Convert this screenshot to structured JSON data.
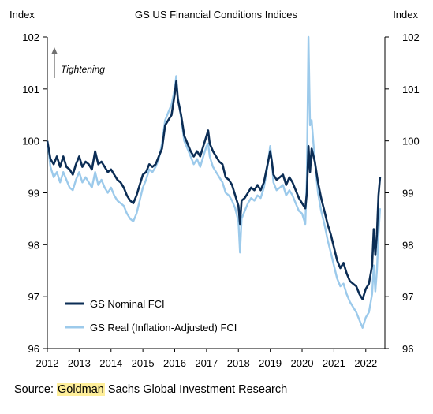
{
  "chart_data": {
    "type": "line",
    "title": "GS US Financial Conditions Indices",
    "ylabel_left": "Index",
    "ylabel_right": "Index",
    "ylim": [
      96,
      102
    ],
    "yticks": [
      "96",
      "97",
      "98",
      "99",
      "100",
      "101",
      "102"
    ],
    "xlim": [
      2012,
      2022.6
    ],
    "xticks": [
      "2012",
      "2013",
      "2014",
      "2015",
      "2016",
      "2017",
      "2018",
      "2019",
      "2020",
      "2021",
      "2022"
    ],
    "annotation": "Tightening",
    "legend_position": "bottom-left",
    "grid": false,
    "series": [
      {
        "name": "GS Nominal FCI",
        "color": "#0b2d55",
        "points": [
          [
            2012.0,
            100.0
          ],
          [
            2012.1,
            99.65
          ],
          [
            2012.2,
            99.55
          ],
          [
            2012.3,
            99.7
          ],
          [
            2012.4,
            99.5
          ],
          [
            2012.5,
            99.7
          ],
          [
            2012.6,
            99.5
          ],
          [
            2012.7,
            99.45
          ],
          [
            2012.8,
            99.35
          ],
          [
            2012.9,
            99.55
          ],
          [
            2013.0,
            99.7
          ],
          [
            2013.1,
            99.5
          ],
          [
            2013.2,
            99.6
          ],
          [
            2013.3,
            99.55
          ],
          [
            2013.4,
            99.45
          ],
          [
            2013.5,
            99.8
          ],
          [
            2013.6,
            99.55
          ],
          [
            2013.7,
            99.6
          ],
          [
            2013.8,
            99.5
          ],
          [
            2013.9,
            99.4
          ],
          [
            2014.0,
            99.45
          ],
          [
            2014.1,
            99.35
          ],
          [
            2014.2,
            99.25
          ],
          [
            2014.3,
            99.2
          ],
          [
            2014.4,
            99.1
          ],
          [
            2014.5,
            98.95
          ],
          [
            2014.6,
            98.85
          ],
          [
            2014.7,
            98.8
          ],
          [
            2014.8,
            98.95
          ],
          [
            2014.9,
            99.15
          ],
          [
            2015.0,
            99.35
          ],
          [
            2015.1,
            99.4
          ],
          [
            2015.2,
            99.55
          ],
          [
            2015.3,
            99.5
          ],
          [
            2015.4,
            99.55
          ],
          [
            2015.5,
            99.7
          ],
          [
            2015.6,
            99.85
          ],
          [
            2015.7,
            100.3
          ],
          [
            2015.8,
            100.4
          ],
          [
            2015.9,
            100.5
          ],
          [
            2016.0,
            100.9
          ],
          [
            2016.05,
            101.15
          ],
          [
            2016.1,
            100.8
          ],
          [
            2016.2,
            100.5
          ],
          [
            2016.3,
            100.1
          ],
          [
            2016.4,
            99.95
          ],
          [
            2016.5,
            99.8
          ],
          [
            2016.6,
            99.7
          ],
          [
            2016.7,
            99.8
          ],
          [
            2016.8,
            99.7
          ],
          [
            2016.9,
            99.9
          ],
          [
            2017.0,
            100.1
          ],
          [
            2017.05,
            100.2
          ],
          [
            2017.1,
            99.95
          ],
          [
            2017.2,
            99.8
          ],
          [
            2017.3,
            99.7
          ],
          [
            2017.4,
            99.6
          ],
          [
            2017.5,
            99.55
          ],
          [
            2017.6,
            99.3
          ],
          [
            2017.7,
            99.25
          ],
          [
            2017.8,
            99.15
          ],
          [
            2017.9,
            98.95
          ],
          [
            2018.0,
            98.75
          ],
          [
            2018.05,
            98.4
          ],
          [
            2018.1,
            98.85
          ],
          [
            2018.2,
            98.9
          ],
          [
            2018.3,
            99.0
          ],
          [
            2018.4,
            99.1
          ],
          [
            2018.5,
            99.05
          ],
          [
            2018.6,
            99.15
          ],
          [
            2018.7,
            99.05
          ],
          [
            2018.8,
            99.2
          ],
          [
            2018.9,
            99.5
          ],
          [
            2019.0,
            99.8
          ],
          [
            2019.05,
            99.6
          ],
          [
            2019.1,
            99.35
          ],
          [
            2019.2,
            99.25
          ],
          [
            2019.3,
            99.3
          ],
          [
            2019.4,
            99.35
          ],
          [
            2019.5,
            99.15
          ],
          [
            2019.6,
            99.3
          ],
          [
            2019.7,
            99.2
          ],
          [
            2019.8,
            99.05
          ],
          [
            2019.9,
            98.9
          ],
          [
            2020.0,
            98.8
          ],
          [
            2020.1,
            98.7
          ],
          [
            2020.15,
            99.0
          ],
          [
            2020.2,
            99.9
          ],
          [
            2020.25,
            99.4
          ],
          [
            2020.3,
            99.85
          ],
          [
            2020.4,
            99.6
          ],
          [
            2020.5,
            99.2
          ],
          [
            2020.6,
            98.9
          ],
          [
            2020.7,
            98.65
          ],
          [
            2020.8,
            98.4
          ],
          [
            2020.9,
            98.2
          ],
          [
            2021.0,
            97.95
          ],
          [
            2021.1,
            97.7
          ],
          [
            2021.2,
            97.55
          ],
          [
            2021.3,
            97.65
          ],
          [
            2021.4,
            97.45
          ],
          [
            2021.5,
            97.3
          ],
          [
            2021.6,
            97.25
          ],
          [
            2021.7,
            97.2
          ],
          [
            2021.8,
            97.05
          ],
          [
            2021.9,
            96.95
          ],
          [
            2022.0,
            97.15
          ],
          [
            2022.1,
            97.25
          ],
          [
            2022.2,
            97.6
          ],
          [
            2022.25,
            98.3
          ],
          [
            2022.3,
            97.8
          ],
          [
            2022.35,
            98.2
          ],
          [
            2022.4,
            98.95
          ],
          [
            2022.45,
            99.3
          ]
        ]
      },
      {
        "name": "GS Real (Inflation-Adjusted) FCI",
        "color": "#9ccaeb",
        "points": [
          [
            2012.0,
            100.0
          ],
          [
            2012.1,
            99.5
          ],
          [
            2012.2,
            99.3
          ],
          [
            2012.3,
            99.4
          ],
          [
            2012.4,
            99.2
          ],
          [
            2012.5,
            99.4
          ],
          [
            2012.6,
            99.25
          ],
          [
            2012.7,
            99.1
          ],
          [
            2012.8,
            99.05
          ],
          [
            2012.9,
            99.25
          ],
          [
            2013.0,
            99.4
          ],
          [
            2013.1,
            99.2
          ],
          [
            2013.2,
            99.3
          ],
          [
            2013.3,
            99.2
          ],
          [
            2013.4,
            99.1
          ],
          [
            2013.5,
            99.4
          ],
          [
            2013.6,
            99.15
          ],
          [
            2013.7,
            99.25
          ],
          [
            2013.8,
            99.1
          ],
          [
            2013.9,
            99.0
          ],
          [
            2014.0,
            99.1
          ],
          [
            2014.1,
            98.95
          ],
          [
            2014.2,
            98.85
          ],
          [
            2014.3,
            98.8
          ],
          [
            2014.4,
            98.75
          ],
          [
            2014.5,
            98.6
          ],
          [
            2014.6,
            98.5
          ],
          [
            2014.7,
            98.45
          ],
          [
            2014.8,
            98.6
          ],
          [
            2014.9,
            98.85
          ],
          [
            2015.0,
            99.1
          ],
          [
            2015.1,
            99.25
          ],
          [
            2015.2,
            99.45
          ],
          [
            2015.3,
            99.4
          ],
          [
            2015.4,
            99.5
          ],
          [
            2015.5,
            99.65
          ],
          [
            2015.6,
            99.95
          ],
          [
            2015.7,
            100.4
          ],
          [
            2015.8,
            100.55
          ],
          [
            2015.9,
            100.7
          ],
          [
            2016.0,
            101.0
          ],
          [
            2016.05,
            101.25
          ],
          [
            2016.1,
            100.85
          ],
          [
            2016.2,
            100.45
          ],
          [
            2016.3,
            100.0
          ],
          [
            2016.4,
            99.85
          ],
          [
            2016.5,
            99.7
          ],
          [
            2016.6,
            99.55
          ],
          [
            2016.7,
            99.65
          ],
          [
            2016.8,
            99.5
          ],
          [
            2016.9,
            99.7
          ],
          [
            2017.0,
            99.9
          ],
          [
            2017.05,
            99.95
          ],
          [
            2017.1,
            99.7
          ],
          [
            2017.2,
            99.5
          ],
          [
            2017.3,
            99.4
          ],
          [
            2017.4,
            99.3
          ],
          [
            2017.5,
            99.2
          ],
          [
            2017.6,
            99.0
          ],
          [
            2017.7,
            98.95
          ],
          [
            2017.8,
            98.85
          ],
          [
            2017.9,
            98.7
          ],
          [
            2018.0,
            98.45
          ],
          [
            2018.05,
            97.85
          ],
          [
            2018.1,
            98.5
          ],
          [
            2018.2,
            98.65
          ],
          [
            2018.3,
            98.8
          ],
          [
            2018.4,
            98.9
          ],
          [
            2018.5,
            98.85
          ],
          [
            2018.6,
            98.95
          ],
          [
            2018.7,
            98.9
          ],
          [
            2018.8,
            99.1
          ],
          [
            2018.9,
            99.45
          ],
          [
            2019.0,
            99.9
          ],
          [
            2019.05,
            99.6
          ],
          [
            2019.1,
            99.2
          ],
          [
            2019.2,
            99.05
          ],
          [
            2019.3,
            99.1
          ],
          [
            2019.4,
            99.15
          ],
          [
            2019.5,
            98.95
          ],
          [
            2019.6,
            99.05
          ],
          [
            2019.7,
            98.95
          ],
          [
            2019.8,
            98.8
          ],
          [
            2019.9,
            98.65
          ],
          [
            2020.0,
            98.6
          ],
          [
            2020.1,
            98.4
          ],
          [
            2020.15,
            99.3
          ],
          [
            2020.2,
            102.0
          ],
          [
            2020.25,
            100.3
          ],
          [
            2020.3,
            100.4
          ],
          [
            2020.4,
            99.6
          ],
          [
            2020.5,
            99.0
          ],
          [
            2020.6,
            98.65
          ],
          [
            2020.7,
            98.4
          ],
          [
            2020.8,
            98.1
          ],
          [
            2020.9,
            97.85
          ],
          [
            2021.0,
            97.6
          ],
          [
            2021.1,
            97.35
          ],
          [
            2021.2,
            97.2
          ],
          [
            2021.3,
            97.25
          ],
          [
            2021.4,
            97.05
          ],
          [
            2021.5,
            96.9
          ],
          [
            2021.6,
            96.8
          ],
          [
            2021.7,
            96.7
          ],
          [
            2021.8,
            96.55
          ],
          [
            2021.9,
            96.4
          ],
          [
            2022.0,
            96.6
          ],
          [
            2022.1,
            96.7
          ],
          [
            2022.2,
            97.05
          ],
          [
            2022.25,
            97.6
          ],
          [
            2022.3,
            97.1
          ],
          [
            2022.35,
            97.5
          ],
          [
            2022.4,
            98.2
          ],
          [
            2022.45,
            98.7
          ]
        ]
      }
    ]
  },
  "source": {
    "prefix": "Source: ",
    "highlight": "Goldman",
    "suffix": " Sachs Global Investment Research"
  }
}
